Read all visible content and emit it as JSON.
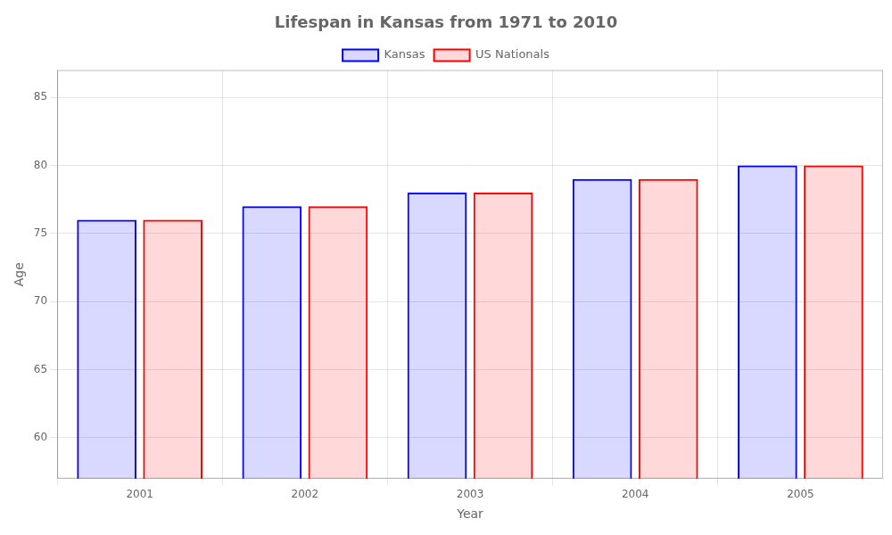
{
  "chart_data": {
    "type": "bar",
    "title": "Lifespan in Kansas from 1971 to 2010",
    "xlabel": "Year",
    "ylabel": "Age",
    "categories": [
      "2001",
      "2002",
      "2003",
      "2004",
      "2005"
    ],
    "series": [
      {
        "name": "Kansas",
        "color": "#0000ff",
        "values": [
          76,
          77,
          78,
          79,
          80
        ]
      },
      {
        "name": "US Nationals",
        "color": "#ff0000",
        "values": [
          76,
          77,
          78,
          79,
          80
        ]
      }
    ],
    "ylim": [
      57,
      87
    ],
    "yticks": [
      60,
      65,
      70,
      75,
      80,
      85
    ],
    "grid": true,
    "legend": "top"
  }
}
